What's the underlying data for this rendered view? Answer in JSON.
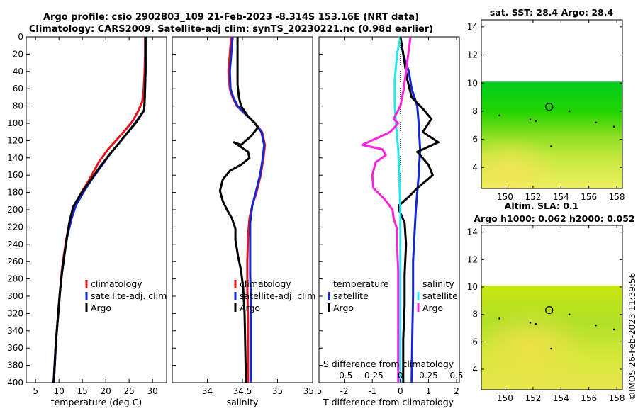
{
  "figure": {
    "title_line1": "Argo profile: csio 2902803_109 21-Feb-2023 -8.314S 153.16E (NRT data)",
    "title_line2": "Climatology: CARS2009. Satellite-adj clim: synTS_20230221.nc (0.98d earlier)",
    "timestamp": "©IMOS 26-Feb-2023 11:39:56",
    "colors": {
      "climatology": "#e8141c",
      "satellite": "#1428d2",
      "argo": "#000000",
      "salinity_diff": "#ff22dd",
      "salinity_sat_diff": "#22e6f0"
    }
  },
  "chart_data": [
    {
      "id": "temperature",
      "type": "line",
      "xlabel": "temperature (deg C)",
      "ylabel": "",
      "xlim": [
        3,
        33
      ],
      "ylim": [
        400,
        0
      ],
      "xticks": [
        5,
        10,
        15,
        20,
        25,
        30
      ],
      "yticks": [
        0,
        20,
        40,
        60,
        80,
        100,
        120,
        140,
        160,
        180,
        200,
        220,
        240,
        260,
        280,
        300,
        320,
        340,
        360,
        380,
        400
      ],
      "legend": {
        "placement": "lower-right",
        "entries": [
          "climatology",
          "satellite-adj. clim",
          "Argo"
        ]
      },
      "series": [
        {
          "name": "climatology",
          "color": "#e8141c",
          "points": [
            [
              28.4,
              0
            ],
            [
              28.4,
              20
            ],
            [
              28.3,
              40
            ],
            [
              28.1,
              60
            ],
            [
              27.8,
              75
            ],
            [
              27.0,
              85
            ],
            [
              25.8,
              97
            ],
            [
              24.3,
              107
            ],
            [
              22.5,
              118
            ],
            [
              20.5,
              130
            ],
            [
              18.5,
              145
            ],
            [
              16.5,
              165
            ],
            [
              14.8,
              180
            ],
            [
              13.3,
              195
            ],
            [
              12.5,
              210
            ],
            [
              11.7,
              230
            ],
            [
              11.1,
              250
            ],
            [
              10.6,
              270
            ],
            [
              10.3,
              290
            ],
            [
              10.0,
              310
            ],
            [
              9.7,
              330
            ],
            [
              9.4,
              350
            ],
            [
              9.2,
              370
            ],
            [
              9.0,
              390
            ],
            [
              8.9,
              400
            ]
          ]
        },
        {
          "name": "satellite-adj. clim",
          "color": "#1428d2",
          "points": [
            [
              28.5,
              0
            ],
            [
              28.5,
              20
            ],
            [
              28.5,
              40
            ],
            [
              28.4,
              60
            ],
            [
              28.3,
              75
            ],
            [
              28.2,
              85
            ],
            [
              26.5,
              98
            ],
            [
              24.8,
              110
            ],
            [
              23.0,
              122
            ],
            [
              21.0,
              135
            ],
            [
              19.0,
              150
            ],
            [
              17.0,
              165
            ],
            [
              15.2,
              180
            ],
            [
              13.6,
              195
            ],
            [
              12.7,
              210
            ],
            [
              11.8,
              230
            ],
            [
              11.2,
              250
            ],
            [
              10.7,
              270
            ],
            [
              10.3,
              290
            ],
            [
              10.0,
              310
            ],
            [
              9.7,
              330
            ],
            [
              9.4,
              350
            ],
            [
              9.2,
              370
            ],
            [
              9.0,
              390
            ],
            [
              8.9,
              400
            ]
          ]
        },
        {
          "name": "Argo",
          "color": "#000000",
          "points": [
            [
              28.5,
              0
            ],
            [
              28.5,
              20
            ],
            [
              28.5,
              40
            ],
            [
              28.4,
              60
            ],
            [
              28.3,
              75
            ],
            [
              28.2,
              85
            ],
            [
              26.5,
              99
            ],
            [
              24.6,
              111
            ],
            [
              22.8,
              123
            ],
            [
              20.8,
              136
            ],
            [
              18.8,
              150
            ],
            [
              16.6,
              167
            ],
            [
              14.6,
              182
            ],
            [
              13.0,
              197
            ],
            [
              12.2,
              215
            ],
            [
              11.6,
              235
            ],
            [
              11.1,
              255
            ],
            [
              10.6,
              275
            ],
            [
              10.2,
              295
            ],
            [
              9.9,
              315
            ],
            [
              9.6,
              335
            ],
            [
              9.3,
              355
            ],
            [
              9.1,
              375
            ],
            [
              8.9,
              395
            ],
            [
              8.8,
              400
            ]
          ]
        }
      ]
    },
    {
      "id": "salinity",
      "type": "line",
      "xlabel": "salinity",
      "ylabel": "",
      "xlim": [
        33.5,
        35.5
      ],
      "ylim": [
        400,
        0
      ],
      "xticks": [
        34,
        34.5,
        35,
        35.5
      ],
      "legend": {
        "placement": "lower-right",
        "entries": [
          "climatology",
          "satellite-adj. clim",
          "Argo"
        ]
      },
      "series": [
        {
          "name": "climatology",
          "color": "#e8141c",
          "points": [
            [
              34.34,
              0
            ],
            [
              34.32,
              20
            ],
            [
              34.3,
              40
            ],
            [
              34.32,
              60
            ],
            [
              34.36,
              70
            ],
            [
              34.42,
              80
            ],
            [
              34.55,
              90
            ],
            [
              34.68,
              100
            ],
            [
              34.78,
              110
            ],
            [
              34.82,
              125
            ],
            [
              34.8,
              140
            ],
            [
              34.76,
              160
            ],
            [
              34.7,
              180
            ],
            [
              34.64,
              195
            ],
            [
              34.6,
              210
            ],
            [
              34.58,
              230
            ],
            [
              34.57,
              260
            ],
            [
              34.57,
              290
            ],
            [
              34.58,
              330
            ],
            [
              34.58,
              370
            ],
            [
              34.58,
              400
            ]
          ]
        },
        {
          "name": "satellite-adj. clim",
          "color": "#1428d2",
          "points": [
            [
              34.36,
              0
            ],
            [
              34.34,
              20
            ],
            [
              34.32,
              40
            ],
            [
              34.33,
              60
            ],
            [
              34.37,
              70
            ],
            [
              34.43,
              80
            ],
            [
              34.55,
              90
            ],
            [
              34.68,
              100
            ],
            [
              34.77,
              110
            ],
            [
              34.81,
              125
            ],
            [
              34.79,
              140
            ],
            [
              34.75,
              160
            ],
            [
              34.69,
              180
            ],
            [
              34.64,
              195
            ],
            [
              34.61,
              215
            ],
            [
              34.61,
              245
            ],
            [
              34.61,
              275
            ],
            [
              34.62,
              305
            ],
            [
              34.62,
              340
            ],
            [
              34.62,
              370
            ],
            [
              34.62,
              400
            ]
          ]
        },
        {
          "name": "Argo",
          "color": "#000000",
          "points": [
            [
              34.43,
              0
            ],
            [
              34.43,
              20
            ],
            [
              34.43,
              40
            ],
            [
              34.43,
              55
            ],
            [
              34.45,
              70
            ],
            [
              34.48,
              80
            ],
            [
              34.58,
              92
            ],
            [
              34.68,
              100
            ],
            [
              34.72,
              105
            ],
            [
              34.62,
              115
            ],
            [
              34.48,
              125
            ],
            [
              34.38,
              122
            ],
            [
              34.58,
              133
            ],
            [
              34.6,
              140
            ],
            [
              34.48,
              148
            ],
            [
              34.32,
              155
            ],
            [
              34.22,
              165
            ],
            [
              34.18,
              178
            ],
            [
              34.22,
              190
            ],
            [
              34.28,
              200
            ],
            [
              34.35,
              210
            ],
            [
              34.4,
              222
            ],
            [
              34.4,
              235
            ],
            [
              34.44,
              255
            ],
            [
              34.48,
              270
            ],
            [
              34.51,
              290
            ],
            [
              34.53,
              320
            ],
            [
              34.54,
              360
            ],
            [
              34.55,
              400
            ]
          ]
        }
      ]
    },
    {
      "id": "difference",
      "type": "line",
      "xlabel": "T difference from climatology",
      "x2label": "S difference from climatology",
      "xlim": [
        -2.9,
        2.1
      ],
      "x2lim": [
        -0.725,
        0.525
      ],
      "ylim": [
        400,
        0
      ],
      "xticks": [
        -2,
        -1,
        0,
        1,
        2
      ],
      "x2ticks": [
        -0.5,
        -0.25,
        0,
        0.25,
        0.5
      ],
      "x2ticklabels": [
        "-0.5",
        "-0.25",
        "0",
        "0.25",
        "0.5"
      ],
      "legend": {
        "placement": "lower-center",
        "temperature_header": "temperature",
        "salinity_header": "salinity",
        "temperature_entries": [
          "satellite",
          "Argo"
        ],
        "salinity_entries": [
          "satellite",
          "Argo"
        ]
      },
      "series": [
        {
          "name": "T satellite",
          "color": "#1428d2",
          "points": [
            [
              0.0,
              0
            ],
            [
              0.1,
              20
            ],
            [
              0.3,
              40
            ],
            [
              0.4,
              60
            ],
            [
              0.6,
              80
            ],
            [
              0.65,
              100
            ],
            [
              0.7,
              130
            ],
            [
              0.65,
              160
            ],
            [
              0.6,
              180
            ],
            [
              0.55,
              200
            ],
            [
              0.5,
              230
            ],
            [
              0.45,
              260
            ],
            [
              0.45,
              300
            ],
            [
              0.42,
              350
            ],
            [
              0.4,
              400
            ]
          ]
        },
        {
          "name": "T Argo",
          "color": "#000000",
          "points": [
            [
              0.0,
              0
            ],
            [
              0.1,
              20
            ],
            [
              0.25,
              50
            ],
            [
              0.4,
              70
            ],
            [
              0.85,
              85
            ],
            [
              1.1,
              95
            ],
            [
              0.8,
              110
            ],
            [
              1.35,
              122
            ],
            [
              0.6,
              133
            ],
            [
              1.0,
              148
            ],
            [
              1.15,
              160
            ],
            [
              0.6,
              175
            ],
            [
              0.3,
              185
            ],
            [
              -0.05,
              195
            ],
            [
              -0.05,
              200
            ],
            [
              0.15,
              215
            ],
            [
              0.2,
              240
            ],
            [
              0.15,
              275
            ],
            [
              0.15,
              310
            ],
            [
              0.1,
              350
            ],
            [
              0.1,
              400
            ]
          ]
        },
        {
          "name": "S satellite",
          "color": "#22e6f0",
          "points": [
            [
              0.0,
              0
            ],
            [
              -0.03,
              20
            ],
            [
              -0.05,
              50
            ],
            [
              -0.05,
              80
            ],
            [
              -0.04,
              100
            ],
            [
              -0.02,
              130
            ],
            [
              -0.01,
              160
            ],
            [
              0.0,
              200
            ],
            [
              0.0,
              260
            ],
            [
              0.0,
              300
            ],
            [
              0.0,
              400
            ]
          ]
        },
        {
          "name": "S Argo",
          "color": "#ff22dd",
          "points": [
            [
              0.09,
              0
            ],
            [
              0.07,
              20
            ],
            [
              0.05,
              40
            ],
            [
              0.03,
              60
            ],
            [
              0.0,
              80
            ],
            [
              -0.06,
              95
            ],
            [
              -0.02,
              100
            ],
            [
              -0.09,
              110
            ],
            [
              -0.34,
              125
            ],
            [
              -0.16,
              130
            ],
            [
              -0.13,
              137
            ],
            [
              -0.22,
              145
            ],
            [
              -0.25,
              160
            ],
            [
              -0.24,
              175
            ],
            [
              -0.14,
              188
            ],
            [
              -0.07,
              200
            ],
            [
              -0.06,
              210
            ],
            [
              -0.03,
              222
            ],
            [
              -0.03,
              240
            ],
            [
              -0.02,
              270
            ],
            [
              -0.02,
              300
            ],
            [
              -0.02,
              350
            ],
            [
              -0.02,
              400
            ]
          ]
        }
      ]
    },
    {
      "id": "sst_map",
      "type": "heatmap",
      "title": "sat. SST: 28.4 Argo: 28.4",
      "xlim": [
        148.3,
        158.4
      ],
      "ylim": [
        2.5,
        14.5
      ],
      "xticks": [
        150,
        152,
        154,
        156,
        158
      ],
      "yticks": [
        4,
        6,
        8,
        10,
        12,
        14
      ],
      "data_top": 10.1,
      "marker": {
        "lon": 153.16,
        "lat": 8.314
      }
    },
    {
      "id": "sla_map",
      "type": "heatmap",
      "title": "Altim. SLA: 0.1",
      "subtitle": "Argo h1000: 0.062 h2000: 0.052",
      "xlim": [
        148.3,
        158.4
      ],
      "ylim": [
        2.5,
        14.5
      ],
      "xticks": [
        150,
        152,
        154,
        156,
        158
      ],
      "yticks": [
        4,
        6,
        8,
        10,
        12,
        14
      ],
      "data_top": 10.1,
      "marker": {
        "lon": 153.16,
        "lat": 8.314
      }
    }
  ]
}
